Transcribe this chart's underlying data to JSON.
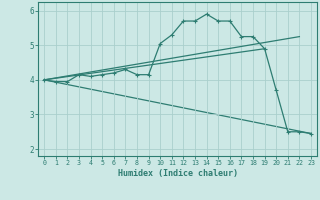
{
  "xlabel": "Humidex (Indice chaleur)",
  "bg_color": "#cce8e5",
  "grid_color": "#aacfcc",
  "line_color": "#2e7d72",
  "xlim": [
    -0.5,
    23.5
  ],
  "ylim": [
    1.8,
    6.25
  ],
  "xticks": [
    0,
    1,
    2,
    3,
    4,
    5,
    6,
    7,
    8,
    9,
    10,
    11,
    12,
    13,
    14,
    15,
    16,
    17,
    18,
    19,
    20,
    21,
    22,
    23
  ],
  "yticks": [
    2,
    3,
    4,
    5,
    6
  ],
  "curve_x": [
    0,
    1,
    2,
    3,
    4,
    5,
    6,
    7,
    8,
    9,
    10,
    11,
    12,
    13,
    14,
    15,
    16,
    17,
    18,
    19,
    20,
    21,
    22,
    23
  ],
  "curve_y": [
    4.0,
    3.95,
    3.95,
    4.15,
    4.1,
    4.15,
    4.2,
    4.3,
    4.15,
    4.15,
    5.05,
    5.3,
    5.7,
    5.7,
    5.9,
    5.7,
    5.7,
    5.25,
    5.25,
    4.9,
    3.7,
    2.5,
    2.5,
    2.45
  ],
  "line2_x": [
    0,
    22
  ],
  "line2_y": [
    4.0,
    5.25
  ],
  "line3_x": [
    0,
    23
  ],
  "line3_y": [
    4.0,
    2.45
  ],
  "line4_x": [
    0,
    19
  ],
  "line4_y": [
    4.0,
    4.9
  ]
}
